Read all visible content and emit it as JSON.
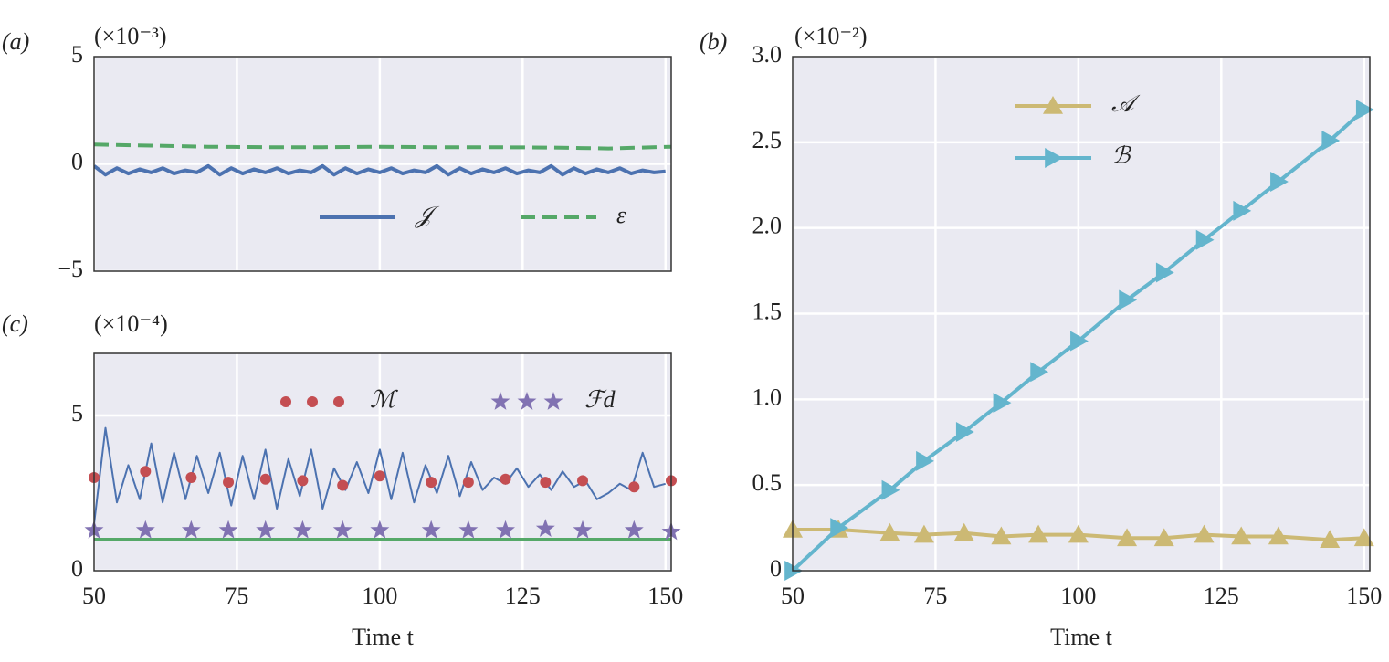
{
  "chart_data": [
    {
      "type": "line",
      "panel": "(a)",
      "scale_label": "(×10⁻³)",
      "xlim": [
        50,
        151
      ],
      "xticks": [
        50,
        75,
        100,
        125,
        150
      ],
      "show_xtick_labels": false,
      "ylim": [
        -5,
        5
      ],
      "yticks": [
        {
          "value": -5,
          "label": "−5"
        },
        0,
        5
      ],
      "grid": true,
      "series": [
        {
          "name": "𝒥",
          "color": "#4c72b0",
          "style": "solid",
          "width": 4,
          "x": [
            50,
            52,
            54,
            56,
            58,
            60,
            62,
            64,
            66,
            68,
            70,
            72,
            74,
            76,
            78,
            80,
            82,
            84,
            86,
            88,
            90,
            92,
            94,
            96,
            98,
            100,
            102,
            104,
            106,
            108,
            110,
            112,
            114,
            116,
            118,
            120,
            122,
            124,
            126,
            128,
            130,
            132,
            134,
            136,
            138,
            140,
            142,
            144,
            146,
            148,
            150
          ],
          "values": [
            -0.1,
            -0.5,
            -0.2,
            -0.45,
            -0.25,
            -0.4,
            -0.2,
            -0.45,
            -0.3,
            -0.4,
            -0.1,
            -0.5,
            -0.2,
            -0.45,
            -0.25,
            -0.4,
            -0.2,
            -0.45,
            -0.3,
            -0.4,
            -0.1,
            -0.5,
            -0.2,
            -0.45,
            -0.25,
            -0.4,
            -0.2,
            -0.45,
            -0.3,
            -0.4,
            -0.1,
            -0.5,
            -0.2,
            -0.45,
            -0.25,
            -0.4,
            -0.2,
            -0.45,
            -0.3,
            -0.4,
            -0.1,
            -0.5,
            -0.2,
            -0.45,
            -0.25,
            -0.4,
            -0.2,
            -0.45,
            -0.3,
            -0.4,
            -0.35
          ]
        },
        {
          "name": "ε",
          "color": "#55a868",
          "style": "dashed",
          "width": 4,
          "x": [
            50,
            60,
            70,
            80,
            90,
            100,
            110,
            120,
            130,
            140,
            151
          ],
          "values": [
            0.9,
            0.85,
            0.8,
            0.78,
            0.78,
            0.8,
            0.78,
            0.78,
            0.76,
            0.72,
            0.8
          ]
        }
      ]
    },
    {
      "type": "line",
      "panel": "(b)",
      "scale_label": "(×10⁻²)",
      "x_label": "Time t",
      "xlim": [
        50,
        151
      ],
      "xticks": [
        50,
        75,
        100,
        125,
        150
      ],
      "show_xtick_labels": true,
      "ylim": [
        0,
        3
      ],
      "yticks": [
        0,
        0.5,
        {
          "value": 1,
          "label": "1.0"
        },
        1.5,
        {
          "value": 2,
          "label": "2.0"
        },
        2.5,
        {
          "value": 3,
          "label": "3.0"
        }
      ],
      "grid": true,
      "series": [
        {
          "name": "𝒜",
          "color": "#ccb974",
          "style": "solid",
          "width": 4,
          "marker": "triangle-up",
          "x": [
            50,
            58,
            67,
            73,
            80,
            86.5,
            93,
            100,
            108.5,
            115,
            122,
            128.5,
            135,
            144,
            150
          ],
          "values": [
            0.24,
            0.24,
            0.22,
            0.21,
            0.22,
            0.2,
            0.21,
            0.21,
            0.19,
            0.19,
            0.21,
            0.2,
            0.2,
            0.18,
            0.19
          ]
        },
        {
          "name": "ℬ",
          "color": "#64b5cd",
          "style": "solid",
          "width": 4,
          "marker": "triangle-right",
          "x": [
            50,
            58,
            67,
            73,
            80,
            86.5,
            93,
            100,
            108.5,
            115,
            122,
            128.5,
            135,
            144,
            150
          ],
          "values": [
            0,
            0.25,
            0.47,
            0.64,
            0.81,
            0.98,
            1.16,
            1.34,
            1.58,
            1.74,
            1.93,
            2.1,
            2.27,
            2.51,
            2.69
          ]
        }
      ]
    },
    {
      "type": "line",
      "panel": "(c)",
      "scale_label": "(×10⁻⁴)",
      "x_label": "Time t",
      "xlim": [
        50,
        151
      ],
      "xticks": [
        50,
        75,
        100,
        125,
        150
      ],
      "show_xtick_labels": true,
      "ylim": [
        0,
        7
      ],
      "yticks": [
        0,
        5
      ],
      "grid": true,
      "series": [
        {
          "color": "#4c72b0",
          "style": "solid",
          "width": 2,
          "x": [
            50,
            52,
            54,
            56,
            58,
            60,
            62,
            64,
            66,
            68,
            70,
            72,
            74,
            76,
            78,
            80,
            82,
            84,
            86,
            88,
            90,
            92,
            94,
            96,
            98,
            100,
            102,
            104,
            106,
            108,
            110,
            112,
            114,
            116,
            118,
            120,
            122,
            124,
            126,
            128,
            130,
            132,
            134,
            136,
            138,
            140,
            142,
            144,
            146,
            148,
            150
          ],
          "values": [
            1.5,
            4.6,
            2.2,
            3.4,
            2.3,
            4.1,
            2.2,
            3.8,
            2.3,
            3.7,
            2.5,
            3.8,
            2.1,
            3.7,
            2.3,
            3.9,
            2.0,
            3.6,
            2.4,
            3.9,
            2.0,
            3.3,
            2.6,
            3.5,
            2.5,
            3.9,
            2.3,
            3.8,
            2.2,
            3.4,
            2.5,
            3.7,
            2.4,
            3.5,
            2.6,
            3.0,
            2.8,
            3.3,
            2.7,
            3.1,
            2.6,
            3.2,
            2.7,
            2.9,
            2.3,
            2.5,
            2.8,
            2.6,
            3.8,
            2.7,
            2.8
          ]
        },
        {
          "color": "#55a868",
          "style": "solid",
          "width": 4,
          "x": [
            50,
            151
          ],
          "values": [
            1,
            1
          ]
        },
        {
          "name": "ℳ",
          "color": "#c44e52",
          "style": "none",
          "marker": "circle",
          "x": [
            50,
            59,
            67,
            73.5,
            80,
            86.5,
            93.5,
            100,
            109,
            115.5,
            122,
            129,
            135.5,
            144.5,
            151
          ],
          "values": [
            3.0,
            3.2,
            3.0,
            2.85,
            2.95,
            2.9,
            2.75,
            3.05,
            2.85,
            2.85,
            2.95,
            2.85,
            2.9,
            2.7,
            2.9
          ]
        },
        {
          "name": "ℱd",
          "color": "#8172b2",
          "style": "none",
          "marker": "star",
          "x": [
            50,
            59,
            67,
            73.5,
            80,
            86.5,
            93.5,
            100,
            109,
            115.5,
            122,
            129,
            135.5,
            144.5,
            151
          ],
          "values": [
            1.3,
            1.3,
            1.3,
            1.3,
            1.3,
            1.3,
            1.3,
            1.3,
            1.3,
            1.3,
            1.3,
            1.35,
            1.3,
            1.3,
            1.25
          ]
        }
      ]
    }
  ]
}
